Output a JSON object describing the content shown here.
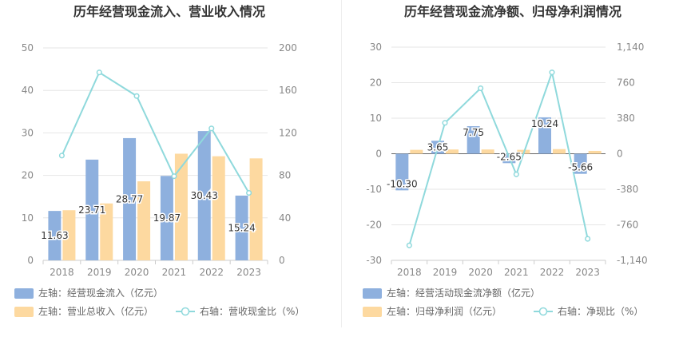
{
  "charts": [
    {
      "type": "bar",
      "title": "历年经营现金流入、营业收入情况",
      "categories": [
        "2018",
        "2019",
        "2020",
        "2021",
        "2022",
        "2023"
      ],
      "left_axis": {
        "min": 0,
        "max": 50,
        "ticks": [
          "0",
          "10",
          "20",
          "30",
          "40",
          "50"
        ],
        "values": [
          0,
          10,
          20,
          30,
          40,
          50
        ]
      },
      "right_axis": {
        "min": 0,
        "max": 200,
        "ticks": [
          "0",
          "40",
          "80",
          "120",
          "160",
          "200"
        ],
        "values": [
          0,
          40,
          80,
          120,
          160,
          200
        ]
      },
      "series": [
        {
          "name": "左轴：经营现金流入（亿元）",
          "kind": "bar",
          "axis": "left",
          "color": "#8eb0de",
          "values": [
            11.63,
            23.71,
            28.77,
            19.87,
            30.43,
            15.24
          ],
          "labels": [
            "11.63",
            "23.71",
            "28.77",
            "19.87",
            "30.43",
            "15.24"
          ]
        },
        {
          "name": "左轴：营业总收入（亿元）",
          "kind": "bar",
          "axis": "left",
          "color": "#fdd9a0",
          "values": [
            11.8,
            13.4,
            18.6,
            25.1,
            24.5,
            24.0
          ]
        },
        {
          "name": "右轴：营收现金比（%）",
          "kind": "line",
          "axis": "right",
          "color": "#8fd9dc",
          "values": [
            98.6,
            176.9,
            154.7,
            79.2,
            124.2,
            63.5
          ]
        }
      ],
      "grid": true
    },
    {
      "type": "bar",
      "title": "历年经营现金流净额、归母净利润情况",
      "categories": [
        "2018",
        "2019",
        "2020",
        "2021",
        "2022",
        "2023"
      ],
      "left_axis": {
        "min": -30,
        "max": 30,
        "ticks": [
          "-30",
          "-20",
          "-10",
          "0",
          "10",
          "20",
          "30"
        ],
        "values": [
          -30,
          -20,
          -10,
          0,
          10,
          20,
          30
        ]
      },
      "right_axis": {
        "min": -1140,
        "max": 1140,
        "ticks": [
          "-1,140",
          "-760",
          "-380",
          "0",
          "380",
          "760",
          "1,140"
        ],
        "values": [
          -1140,
          -760,
          -380,
          0,
          380,
          760,
          1140
        ]
      },
      "series": [
        {
          "name": "左轴：经营活动现金流净额（亿元）",
          "kind": "bar",
          "axis": "left",
          "color": "#8eb0de",
          "values": [
            -10.3,
            3.65,
            7.75,
            -2.65,
            10.24,
            -5.66
          ],
          "labels": [
            "-10.30",
            "3.65",
            "7.75",
            "-2.65",
            "10.24",
            "-5.66"
          ]
        },
        {
          "name": "左轴：归母净利润（亿元）",
          "kind": "bar",
          "axis": "left",
          "color": "#fdd9a0",
          "values": [
            1.1,
            1.2,
            1.2,
            1.1,
            1.3,
            0.8
          ]
        },
        {
          "name": "右轴：净现比（%）",
          "kind": "line",
          "axis": "right",
          "color": "#8fd9dc",
          "values": [
            -980,
            330,
            700,
            -220,
            870,
            -910
          ]
        }
      ],
      "grid": true
    }
  ]
}
